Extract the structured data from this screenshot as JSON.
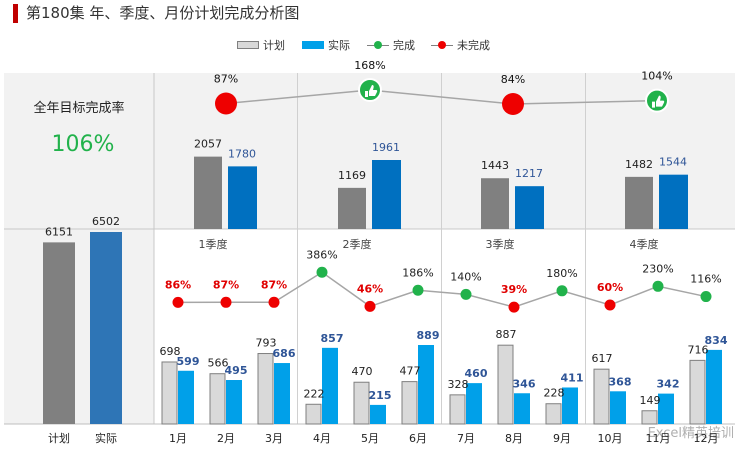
{
  "title": "第180集 年、季度、月份计划完成分析图",
  "legend": {
    "plan": "计划",
    "actual": "实际",
    "complete": "完成",
    "incomplete": "未完成"
  },
  "annual": {
    "label": "全年目标完成率",
    "rate": "106%"
  },
  "watermark": "Excel精英培训",
  "colors": {
    "plan_fill": "#d9d9d9",
    "plan_annual_fill": "#808080",
    "actual_fill": "#00a0e9",
    "actual_quarter_fill": "#0070c0",
    "actual_annual_fill": "#2e75b6",
    "complete": "#21b24b",
    "incomplete": "#ee0000",
    "rate_green": "#21b24b",
    "actual_label": "#2f5597",
    "panel_bg": "#f2f2f2"
  },
  "chart_data": [
    {
      "type": "bar",
      "name": "annual",
      "categories": [
        "计划",
        "实际"
      ],
      "values": [
        6151,
        6502
      ]
    },
    {
      "type": "bar",
      "name": "quarterly",
      "categories": [
        "1季度",
        "2季度",
        "3季度",
        "4季度"
      ],
      "series": [
        {
          "name": "计划",
          "values": [
            2057,
            1169,
            1443,
            1482
          ]
        },
        {
          "name": "实际",
          "values": [
            1780,
            1961,
            1217,
            1544
          ]
        }
      ],
      "rates": [
        {
          "value": 87,
          "label": "87%",
          "status": "未完成"
        },
        {
          "value": 168,
          "label": "168%",
          "status": "完成"
        },
        {
          "value": 84,
          "label": "84%",
          "status": "未完成"
        },
        {
          "value": 104,
          "label": "104%",
          "status": "完成"
        }
      ]
    },
    {
      "type": "bar",
      "name": "monthly",
      "categories": [
        "1月",
        "2月",
        "3月",
        "4月",
        "5月",
        "6月",
        "7月",
        "8月",
        "9月",
        "10月",
        "11月",
        "12月"
      ],
      "series": [
        {
          "name": "计划",
          "values": [
            698,
            566,
            793,
            222,
            470,
            477,
            328,
            887,
            228,
            617,
            149,
            716
          ]
        },
        {
          "name": "实际",
          "values": [
            599,
            495,
            686,
            857,
            215,
            889,
            460,
            346,
            411,
            368,
            342,
            834
          ]
        }
      ],
      "rates": [
        {
          "value": 86,
          "label": "86%",
          "status": "未完成"
        },
        {
          "value": 87,
          "label": "87%",
          "status": "未完成"
        },
        {
          "value": 87,
          "label": "87%",
          "status": "未完成"
        },
        {
          "value": 386,
          "label": "386%",
          "status": "完成"
        },
        {
          "value": 46,
          "label": "46%",
          "status": "未完成"
        },
        {
          "value": 186,
          "label": "186%",
          "status": "完成"
        },
        {
          "value": 140,
          "label": "140%",
          "status": "完成"
        },
        {
          "value": 39,
          "label": "39%",
          "status": "未完成"
        },
        {
          "value": 180,
          "label": "180%",
          "status": "完成"
        },
        {
          "value": 60,
          "label": "60%",
          "status": "未完成"
        },
        {
          "value": 230,
          "label": "230%",
          "status": "完成"
        },
        {
          "value": 116,
          "label": "116%",
          "status": "完成"
        }
      ]
    }
  ]
}
